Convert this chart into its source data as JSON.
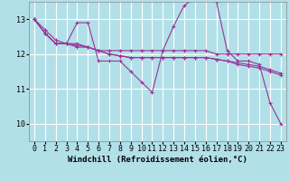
{
  "background_color": "#b2e0e8",
  "grid_color": "#ffffff",
  "line_color": "#993399",
  "marker": "+",
  "xlabel": "Windchill (Refroidissement éolien,°C)",
  "xlabel_fontsize": 6.5,
  "tick_fontsize": 6.0,
  "yticks": [
    10,
    11,
    12,
    13
  ],
  "ylim": [
    9.5,
    13.5
  ],
  "xlim": [
    -0.5,
    23.5
  ],
  "xticks": [
    0,
    1,
    2,
    3,
    4,
    5,
    6,
    7,
    8,
    9,
    10,
    11,
    12,
    13,
    14,
    15,
    16,
    17,
    18,
    19,
    20,
    21,
    22,
    23
  ],
  "series": [
    [
      13.0,
      12.6,
      12.3,
      12.3,
      12.9,
      12.9,
      11.8,
      11.8,
      11.8,
      11.5,
      11.2,
      10.9,
      12.1,
      12.8,
      13.4,
      13.6,
      13.7,
      13.5,
      12.1,
      11.8,
      11.8,
      11.7,
      10.6,
      10.0
    ],
    [
      13.0,
      12.7,
      12.4,
      12.3,
      12.3,
      12.2,
      12.1,
      12.1,
      12.1,
      12.1,
      12.1,
      12.1,
      12.1,
      12.1,
      12.1,
      12.1,
      12.1,
      12.0,
      12.0,
      12.0,
      12.0,
      12.0,
      12.0,
      12.0
    ],
    [
      13.0,
      12.6,
      12.3,
      12.3,
      12.2,
      12.2,
      12.1,
      12.0,
      11.95,
      11.9,
      11.9,
      11.9,
      11.9,
      11.9,
      11.9,
      11.9,
      11.9,
      11.85,
      11.8,
      11.75,
      11.7,
      11.65,
      11.55,
      11.45
    ],
    [
      13.0,
      12.6,
      12.3,
      12.3,
      12.25,
      12.2,
      12.1,
      12.0,
      11.95,
      11.9,
      11.9,
      11.9,
      11.9,
      11.9,
      11.9,
      11.9,
      11.9,
      11.85,
      11.8,
      11.7,
      11.65,
      11.6,
      11.5,
      11.4
    ]
  ]
}
